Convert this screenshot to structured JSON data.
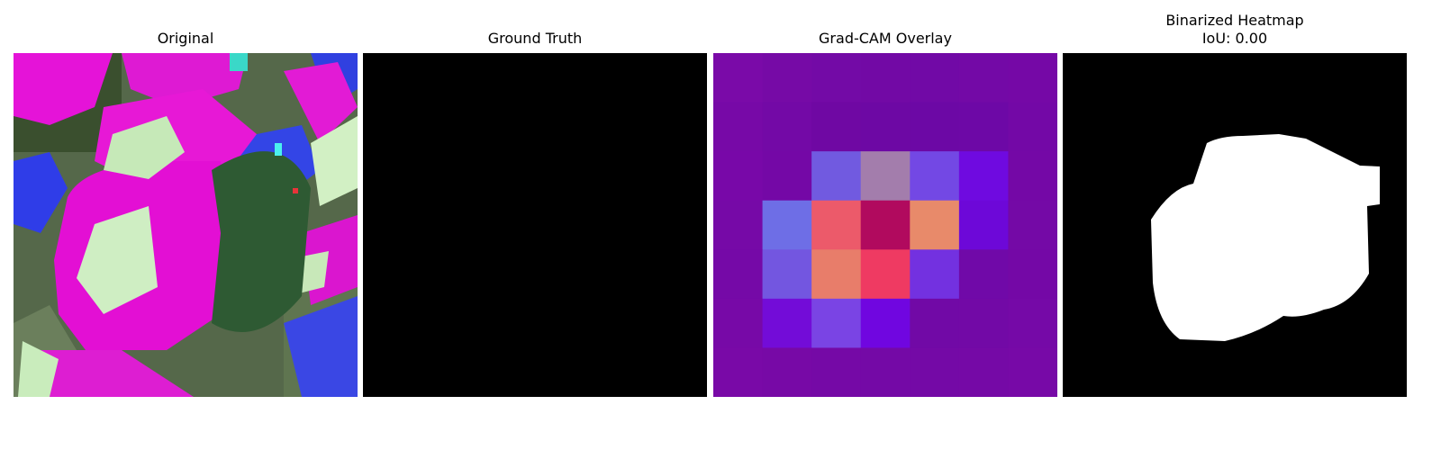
{
  "panels": {
    "original": {
      "title": "Original"
    },
    "ground_truth": {
      "title": "Ground Truth"
    },
    "gradcam": {
      "title": "Grad-CAM Overlay"
    },
    "binarized": {
      "title": "Binarized Heatmap",
      "iou": "IoU: 0.00"
    }
  },
  "heatmap": {
    "grid": [
      [
        "#7a0aa8",
        "#760aa6",
        "#730aa6",
        "#7209a5",
        "#7109a6",
        "#7309a6",
        "#7508a6"
      ],
      [
        "#7709a7",
        "#7309a6",
        "#6f08a3",
        "#6d08a4",
        "#6c08a5",
        "#6d08a6",
        "#7308a6"
      ],
      [
        "#7808a8",
        "#7408a6",
        "#715ae0",
        "#a37dac",
        "#7348e4",
        "#6f0ae0",
        "#7408a6"
      ],
      [
        "#7609a7",
        "#6e6ee6",
        "#ec5a6a",
        "#b10a5e",
        "#e88a6a",
        "#6d08d8",
        "#7409a6"
      ],
      [
        "#7509a7",
        "#7356e0",
        "#e87d6a",
        "#ef3a62",
        "#7331e0",
        "#7009a8",
        "#7408a6"
      ],
      [
        "#7709a7",
        "#730cd8",
        "#7a44e4",
        "#7006e0",
        "#7109a6",
        "#7209a6",
        "#7509a7"
      ],
      [
        "#7909a7",
        "#7709a6",
        "#7509a6",
        "#7409a6",
        "#7409a6",
        "#7509a6",
        "#7709a7"
      ]
    ]
  }
}
